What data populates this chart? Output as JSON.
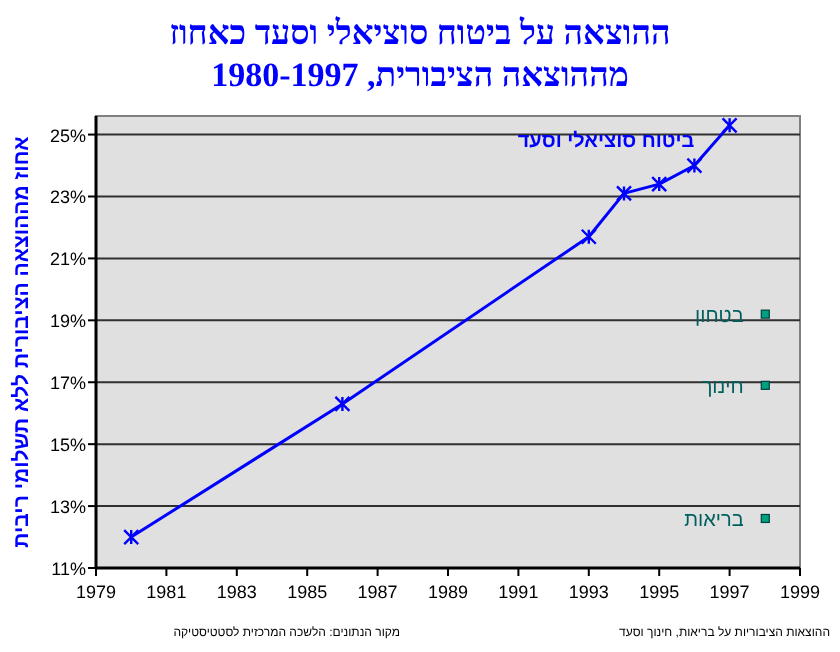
{
  "chart_data": {
    "type": "line",
    "title": "ההוצאה על ביטוח סוציאלי וסעד כאחוז",
    "subtitle": "מההוצאה הציבורית, 1980-1997",
    "ylabel": "אחוז מההוצאה הציבורית ללא תשלומי ריבית",
    "x": [
      1980,
      1986,
      1993,
      1994,
      1995,
      1996,
      1997
    ],
    "series": [
      {
        "name": "ביטוח סוציאלי וסעד",
        "color": "#0000ff",
        "values": [
          12.0,
          16.3,
          21.7,
          23.1,
          23.4,
          24.0,
          25.3
        ]
      }
    ],
    "xlim": [
      1979,
      1999
    ],
    "xticks": [
      1979,
      1981,
      1983,
      1985,
      1987,
      1989,
      1991,
      1993,
      1995,
      1997,
      1999
    ],
    "ylim": [
      11,
      25.6
    ],
    "yticks": [
      {
        "value": 11,
        "label": "11%"
      },
      {
        "value": 13,
        "label": "13%"
      },
      {
        "value": 15,
        "label": "15%"
      },
      {
        "value": 17,
        "label": "17%"
      },
      {
        "value": 19,
        "label": "19%"
      },
      {
        "value": 21,
        "label": "21%"
      },
      {
        "value": 23,
        "label": "23%"
      },
      {
        "value": 25,
        "label": "25%"
      }
    ],
    "grid": "y",
    "marker": "cross",
    "line_style": "solid",
    "annotations": [
      "בטחון",
      "חינוך",
      "בריאות",
      "ההוצאות הציבוריות על בריאות, חינוך וסעד",
      "מקור הנתונים: הלשכה המרכזית לסטטיסטיקה"
    ]
  }
}
